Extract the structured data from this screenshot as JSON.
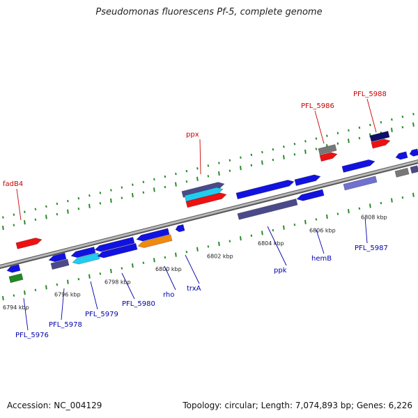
{
  "title": "Pseudomonas fluorescens Pf-5, complete genome",
  "footer": {
    "accession": "Accession: NC_004129",
    "info": "Topology: circular; Length: 7,074,893 bp; Genes: 6,226"
  },
  "colors": {
    "backbone": "#909090",
    "tick": "#2a8a2a",
    "label_forward": "#cc0000",
    "label_reverse": "#0000aa"
  },
  "tick_labels": [
    "6794 kbp",
    "6796 kbp",
    "6798 kbp",
    "6800 kbp",
    "6802 kbp",
    "6804 kbp",
    "6806 kbp",
    "6808 kbp"
  ],
  "gene_labels": [
    {
      "name": "fadB4",
      "strand": "forward"
    },
    {
      "name": "ppx",
      "strand": "forward"
    },
    {
      "name": "PFL_5986",
      "strand": "forward"
    },
    {
      "name": "PFL_5988",
      "strand": "forward"
    },
    {
      "name": "PFL_5976",
      "strand": "reverse"
    },
    {
      "name": "PFL_5978",
      "strand": "reverse"
    },
    {
      "name": "PFL_5979",
      "strand": "reverse"
    },
    {
      "name": "PFL_5980",
      "strand": "reverse"
    },
    {
      "name": "rho",
      "strand": "reverse"
    },
    {
      "name": "trxA",
      "strand": "reverse"
    },
    {
      "name": "ppk",
      "strand": "reverse"
    },
    {
      "name": "hemB",
      "strand": "reverse"
    },
    {
      "name": "PFL_5987",
      "strand": "reverse"
    }
  ],
  "feature_colors": {
    "blue": "#1212e0",
    "red": "#ee1111",
    "cyan": "#22ccee",
    "orange": "#f08a10",
    "grey": "#777777",
    "slate": "#4a4a8a",
    "navy": "#10106a",
    "lavender": "#7070d0",
    "green": "#228822"
  }
}
